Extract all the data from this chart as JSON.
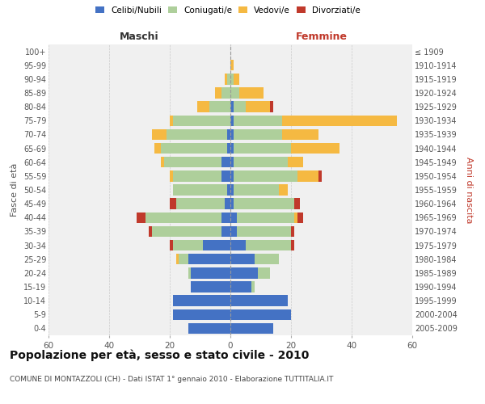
{
  "age_groups": [
    "0-4",
    "5-9",
    "10-14",
    "15-19",
    "20-24",
    "25-29",
    "30-34",
    "35-39",
    "40-44",
    "45-49",
    "50-54",
    "55-59",
    "60-64",
    "65-69",
    "70-74",
    "75-79",
    "80-84",
    "85-89",
    "90-94",
    "95-99",
    "100+"
  ],
  "birth_years": [
    "2005-2009",
    "2000-2004",
    "1995-1999",
    "1990-1994",
    "1985-1989",
    "1980-1984",
    "1975-1979",
    "1970-1974",
    "1965-1969",
    "1960-1964",
    "1955-1959",
    "1950-1954",
    "1945-1949",
    "1940-1944",
    "1935-1939",
    "1930-1934",
    "1925-1929",
    "1920-1924",
    "1915-1919",
    "1910-1914",
    "≤ 1909"
  ],
  "male": {
    "celibi": [
      14,
      19,
      19,
      13,
      13,
      14,
      9,
      3,
      3,
      2,
      1,
      3,
      3,
      1,
      1,
      0,
      0,
      0,
      0,
      0,
      0
    ],
    "coniugati": [
      0,
      0,
      0,
      0,
      1,
      3,
      10,
      23,
      25,
      16,
      18,
      16,
      19,
      22,
      20,
      19,
      7,
      3,
      1,
      0,
      0
    ],
    "vedovi": [
      0,
      0,
      0,
      0,
      0,
      1,
      0,
      0,
      0,
      0,
      0,
      1,
      1,
      2,
      5,
      1,
      4,
      2,
      1,
      0,
      0
    ],
    "divorziati": [
      0,
      0,
      0,
      0,
      0,
      0,
      1,
      1,
      3,
      2,
      0,
      0,
      0,
      0,
      0,
      0,
      0,
      0,
      0,
      0,
      0
    ]
  },
  "female": {
    "nubili": [
      14,
      20,
      19,
      7,
      9,
      8,
      5,
      2,
      2,
      1,
      1,
      1,
      1,
      1,
      1,
      1,
      1,
      0,
      0,
      0,
      0
    ],
    "coniugate": [
      0,
      0,
      0,
      1,
      4,
      8,
      15,
      18,
      19,
      20,
      15,
      21,
      18,
      19,
      16,
      16,
      4,
      3,
      1,
      0,
      0
    ],
    "vedove": [
      0,
      0,
      0,
      0,
      0,
      0,
      0,
      0,
      1,
      0,
      3,
      7,
      5,
      16,
      12,
      38,
      8,
      8,
      2,
      1,
      0
    ],
    "divorziate": [
      0,
      0,
      0,
      0,
      0,
      0,
      1,
      1,
      2,
      2,
      0,
      1,
      0,
      0,
      0,
      0,
      1,
      0,
      0,
      0,
      0
    ]
  },
  "colors": {
    "celibi_nubili": "#4472C4",
    "coniugati": "#AECF9B",
    "vedovi": "#F5B942",
    "divorziati": "#C0392B"
  },
  "xlim": 60,
  "title": "Popolazione per età, sesso e stato civile - 2010",
  "subtitle": "COMUNE DI MONTAZZOLI (CH) - Dati ISTAT 1° gennaio 2010 - Elaborazione TUTTITALIA.IT",
  "xlabel_left": "Maschi",
  "xlabel_right": "Femmine",
  "ylabel_left": "Fasce di età",
  "ylabel_right": "Anni di nascita",
  "legend_labels": [
    "Celibi/Nubili",
    "Coniugati/e",
    "Vedovi/e",
    "Divorziati/e"
  ],
  "bg_color": "#ffffff",
  "plot_bg_color": "#f0f0f0"
}
